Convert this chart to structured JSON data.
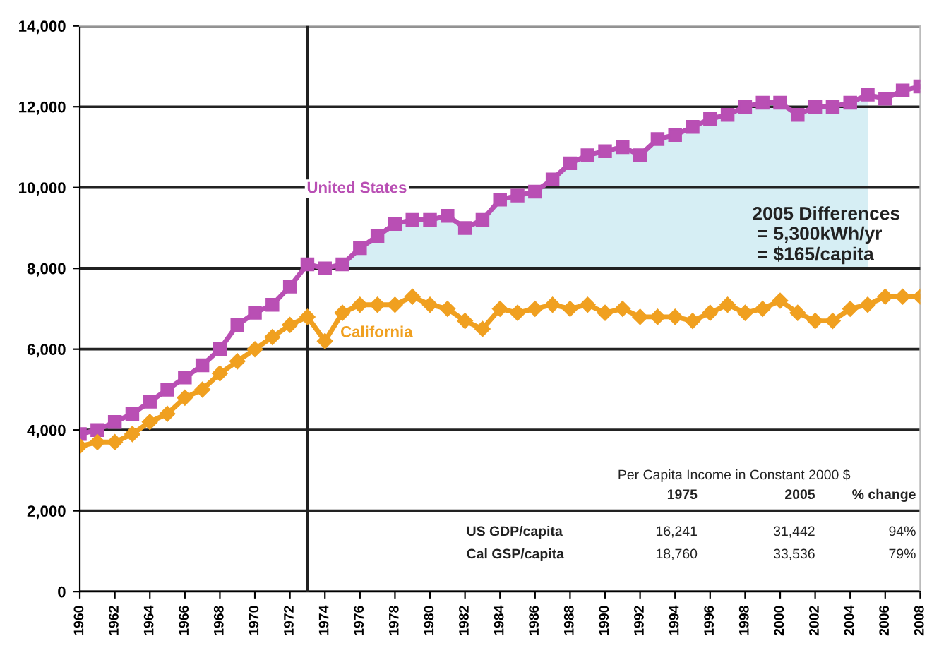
{
  "chart_data": {
    "type": "line",
    "x": [
      1960,
      1961,
      1962,
      1963,
      1964,
      1965,
      1966,
      1967,
      1968,
      1969,
      1970,
      1971,
      1972,
      1973,
      1974,
      1975,
      1976,
      1977,
      1978,
      1979,
      1980,
      1981,
      1982,
      1983,
      1984,
      1985,
      1986,
      1987,
      1988,
      1989,
      1990,
      1991,
      1992,
      1993,
      1994,
      1995,
      1996,
      1997,
      1998,
      1999,
      2000,
      2001,
      2002,
      2003,
      2004,
      2005,
      2006,
      2007,
      2008
    ],
    "series": [
      {
        "type": "area",
        "color": "#d6eef4",
        "x": [
          1975,
          1976,
          1977,
          1978,
          1979,
          1980,
          1981,
          1982,
          1983,
          1984,
          1985,
          1986,
          1987,
          1988,
          1989,
          1990,
          1991,
          1992,
          1993,
          1994,
          1995,
          1996,
          1997,
          1998,
          1999,
          2000,
          2001,
          2002,
          2003,
          2004,
          2005
        ],
        "values": [
          8100,
          8500,
          8800,
          9100,
          9200,
          9200,
          9300,
          9000,
          9200,
          9700,
          9800,
          9900,
          10200,
          10600,
          10800,
          10900,
          11000,
          10800,
          11200,
          11300,
          11500,
          11700,
          11800,
          12000,
          12100,
          12100,
          11800,
          12000,
          12000,
          12100,
          12300
        ]
      },
      {
        "name": "United States",
        "color": "#b94fb4",
        "marker": "square",
        "values": [
          3900,
          4000,
          4200,
          4400,
          4700,
          5000,
          5300,
          5600,
          6000,
          6600,
          6900,
          7100,
          7550,
          8100,
          8000,
          8100,
          8500,
          8800,
          9100,
          9200,
          9200,
          9300,
          9000,
          9200,
          9700,
          9800,
          9900,
          10200,
          10600,
          10800,
          10900,
          11000,
          10800,
          11200,
          11300,
          11500,
          11700,
          11800,
          12000,
          12100,
          12100,
          11800,
          12000,
          12000,
          12100,
          12300,
          12200,
          12400,
          12500
        ]
      },
      {
        "name": "California",
        "color": "#f0a020",
        "marker": "diamond",
        "values": [
          3600,
          3700,
          3700,
          3900,
          4200,
          4400,
          4800,
          5000,
          5400,
          5700,
          6000,
          6300,
          6600,
          6800,
          6200,
          6900,
          7100,
          7100,
          7100,
          7300,
          7100,
          7000,
          6700,
          6500,
          7000,
          6900,
          7000,
          7100,
          7000,
          7100,
          6900,
          7000,
          6800,
          6800,
          6800,
          6700,
          6900,
          7100,
          6900,
          7000,
          7200,
          6900,
          6700,
          6700,
          7000,
          7100,
          7300,
          7300,
          7300
        ]
      }
    ],
    "xlim": [
      1960,
      2008
    ],
    "xticks": [
      1960,
      1962,
      1964,
      1966,
      1968,
      1970,
      1972,
      1974,
      1976,
      1978,
      1980,
      1982,
      1984,
      1986,
      1988,
      1990,
      1992,
      1994,
      1996,
      1998,
      2000,
      2002,
      2004,
      2006,
      2008
    ],
    "ylim": [
      0,
      14000
    ],
    "yticks": [
      {
        "value": 0,
        "label": "0"
      },
      {
        "value": 2000,
        "label": "2,000"
      },
      {
        "value": 4000,
        "label": "4,000"
      },
      {
        "value": 6000,
        "label": "6,000"
      },
      {
        "value": 8000,
        "label": "8,000"
      },
      {
        "value": 10000,
        "label": "10,000"
      },
      {
        "value": 12000,
        "label": "12,000"
      },
      {
        "value": 14000,
        "label": "14,000"
      }
    ],
    "grid": "y",
    "legend": false,
    "ref_lines": [
      {
        "axis": "x",
        "value": 1973,
        "color": "#202020"
      },
      {
        "axis": "y",
        "value": 8000,
        "color": "#202020"
      }
    ],
    "annotations": [
      "2005 Differences\n = 5,300kWh/yr\n = $165/capita",
      "Per Capita Income in Constant 2000 $",
      "1975",
      "2005",
      "% change",
      "US GDP/capita",
      "16,241",
      "31,442",
      "94%",
      "Cal GSP/capita",
      "18,760",
      "33,536",
      "79%"
    ]
  }
}
